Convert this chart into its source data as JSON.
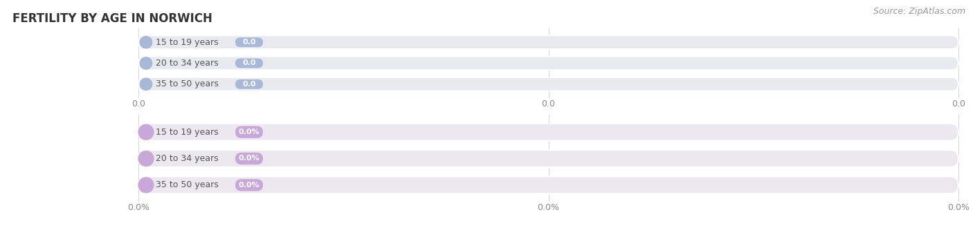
{
  "title": "FERTILITY BY AGE IN NORWICH",
  "source": "Source: ZipAtlas.com",
  "top_chart": {
    "categories": [
      "15 to 19 years",
      "20 to 34 years",
      "35 to 50 years"
    ],
    "values": [
      0.0,
      0.0,
      0.0
    ],
    "bar_bg_color": "#e8eaf0",
    "bar_value_color": "#a8b8d8",
    "label_color": "#555555",
    "value_label": "0.0",
    "tick_label": "0.0"
  },
  "bottom_chart": {
    "categories": [
      "15 to 19 years",
      "20 to 34 years",
      "35 to 50 years"
    ],
    "values": [
      0.0,
      0.0,
      0.0
    ],
    "bar_bg_color": "#ede8f0",
    "bar_value_color": "#c8a8d8",
    "label_color": "#555555",
    "value_label": "0.0%",
    "tick_label": "0.0%"
  },
  "bg_color": "#ffffff",
  "grid_color": "#d8d8d8",
  "title_color": "#333333",
  "source_color": "#999999",
  "tick_color": "#888888",
  "title_fontsize": 12,
  "label_fontsize": 9,
  "value_fontsize": 8,
  "source_fontsize": 9,
  "tick_fontsize": 9
}
